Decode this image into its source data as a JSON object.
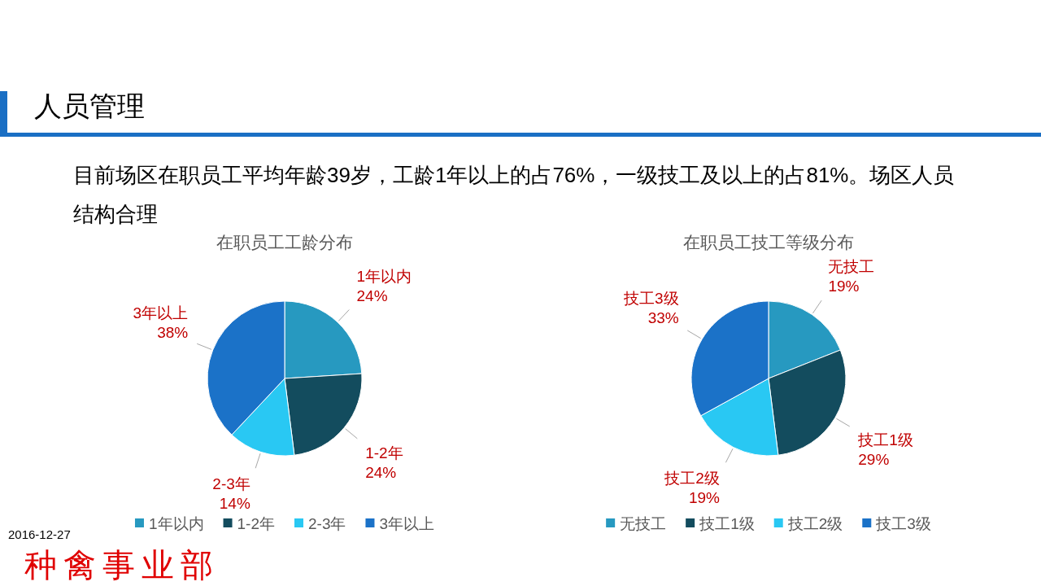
{
  "chart_data": [
    {
      "type": "other",
      "title": "人员管理",
      "subtitle": "目前场区在职员工平均年龄39岁，工龄1年以上的占76%，一级技工及以上的占81%。场区人员结构合理",
      "annotations": [
        "2016-12-27",
        "种禽事业部"
      ]
    },
    {
      "type": "pie",
      "title": "在职员工工龄分布",
      "categories": [
        "1年以内",
        "1-2年",
        "2-3年",
        "3年以上"
      ],
      "values": [
        24,
        24,
        14,
        38
      ],
      "colors": [
        "#2799c0",
        "#134c5e",
        "#29c8f3",
        "#1b72c8"
      ],
      "value_labels": [
        "24%",
        "24%",
        "14%",
        "38%"
      ],
      "legend": "bottom"
    },
    {
      "type": "pie",
      "title": "在职员工技工等级分布",
      "categories": [
        "无技工",
        "技工1级",
        "技工2级",
        "技工3级"
      ],
      "values": [
        19,
        29,
        19,
        33
      ],
      "colors": [
        "#2799c0",
        "#134c5e",
        "#29c8f3",
        "#1b72c8"
      ],
      "value_labels": [
        "19%",
        "29%",
        "19%",
        "33%"
      ],
      "legend": "bottom"
    }
  ]
}
